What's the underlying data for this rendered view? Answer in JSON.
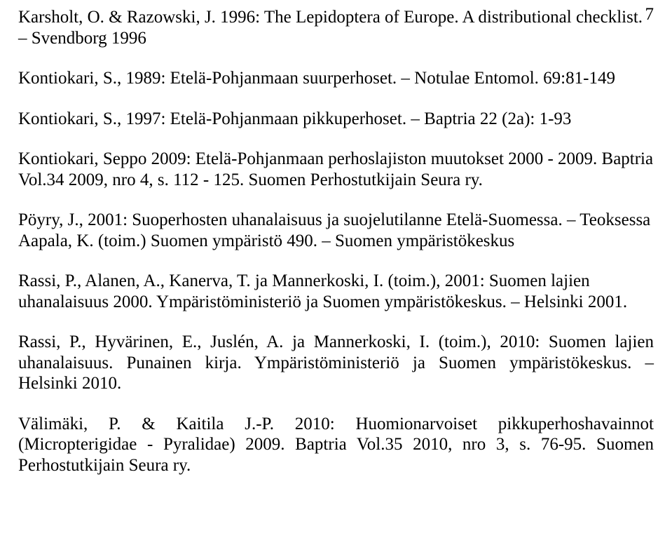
{
  "page_number": "7",
  "paragraphs": [
    "Karsholt, O. & Razowski, J. 1996: The Lepidoptera of Europe. A distributional checklist. – Svendborg 1996",
    "Kontiokari, S., 1989: Etelä-Pohjanmaan suurperhoset. – Notulae Entomol. 69:81-149",
    "Kontiokari, S., 1997: Etelä-Pohjanmaan pikkuperhoset. – Baptria 22 (2a): 1-93",
    "Kontiokari, Seppo 2009: Etelä-Pohjanmaan perhoslajiston muutokset 2000 - 2009. Baptria Vol.34 2009, nro 4, s. 112 - 125. Suomen Perhostutkijain Seura ry.",
    "Pöyry, J., 2001: Suoperhosten uhanalaisuus ja suojelutilanne Etelä-Suomessa. – Teoksessa Aapala, K. (toim.) Suomen ympäristö 490. – Suomen ympäristökeskus",
    "Rassi, P., Alanen, A., Kanerva, T. ja Mannerkoski, I. (toim.), 2001: Suomen lajien uhanalaisuus 2000. Ympäristöministeriö ja Suomen ympäristökeskus. – Helsinki 2001.",
    "Rassi, P., Hyvärinen, E., Juslén, A. ja Mannerkoski, I. (toim.), 2010: Suomen lajien uhanalaisuus. Punainen kirja. Ympäristöministeriö ja Suomen ympäristökeskus. – Helsinki 2010.",
    "Välimäki, P. & Kaitila J.-P.  2010: Huomionarvoiset pikkuperhoshavainnot (Micropterigidae - Pyralidae) 2009. Baptria Vol.35 2010, nro 3, s. 76-95. Suomen Perhostutkijain Seura ry."
  ]
}
